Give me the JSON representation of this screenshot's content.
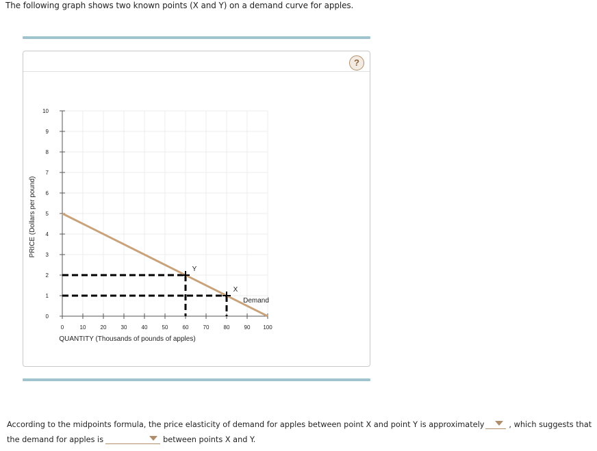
{
  "intro_text": "The following graph shows two known points (X and Y) on a demand curve for apples.",
  "panel": {
    "help_icon": "question-mark-icon",
    "help_label": "?"
  },
  "colors": {
    "demand_line": "#c8a27a",
    "rule": "#9fc4cf",
    "dropdown_accent": "#b08d6a",
    "dashed_lines": "#000000"
  },
  "chart_data": {
    "type": "line",
    "title": "",
    "xlabel": "QUANTITY (Thousands of pounds of apples)",
    "ylabel": "PRICE (Dollars per pound)",
    "xlim": [
      0,
      100
    ],
    "ylim": [
      0,
      10
    ],
    "x_ticks": [
      0,
      10,
      20,
      30,
      40,
      50,
      60,
      70,
      80,
      90,
      100
    ],
    "y_ticks": [
      0,
      1,
      2,
      3,
      4,
      5,
      6,
      7,
      8,
      9,
      10
    ],
    "grid": true,
    "series": [
      {
        "name": "Demand",
        "x": [
          0,
          100
        ],
        "y": [
          5,
          0
        ],
        "label_position": [
          94,
          1
        ]
      }
    ],
    "points": [
      {
        "label": "Y",
        "x": 60,
        "y": 2
      },
      {
        "label": "X",
        "x": 80,
        "y": 1
      }
    ],
    "annotations": [
      "Dashed lines from Y to axes at Q=60, P=2",
      "Dashed lines from X to axes at Q=80, P=1"
    ]
  },
  "question": {
    "part1": "According to the midpoints formula, the price elasticity of demand for apples between point X and point Y is approximately",
    "part2": ", which suggests that the demand for apples is",
    "part3": "between points X and Y.",
    "dropdown1": {
      "value": ""
    },
    "dropdown2": {
      "value": ""
    }
  }
}
